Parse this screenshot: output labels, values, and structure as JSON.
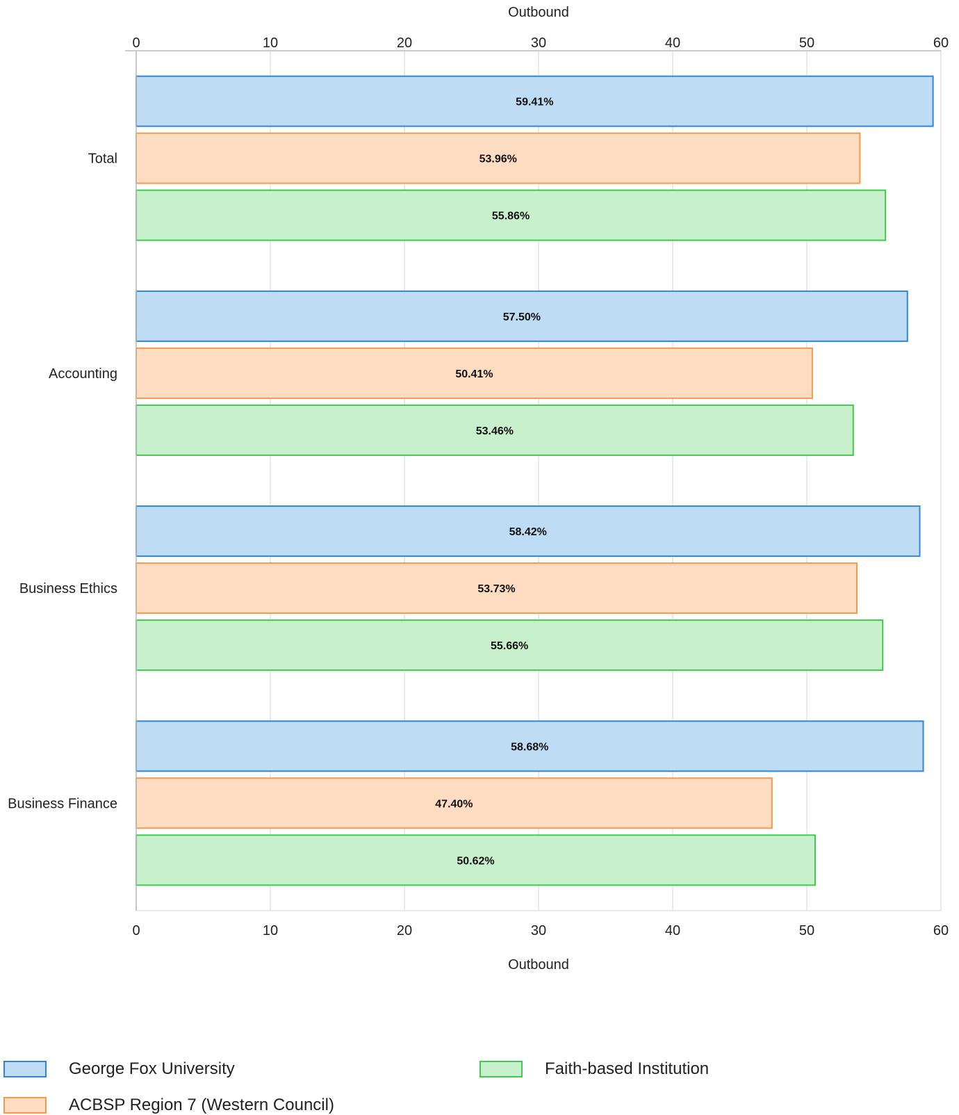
{
  "chart_data": {
    "type": "bar",
    "orientation": "horizontal",
    "categories": [
      "Total",
      "Accounting",
      "Business Ethics",
      "Business Finance"
    ],
    "series": [
      {
        "name": "George Fox University",
        "values": [
          59.41,
          57.5,
          58.42,
          58.68
        ],
        "labels": [
          "59.41%",
          "57.50%",
          "58.42%",
          "58.68%"
        ],
        "fill": "#bfdcf5",
        "stroke": "#2f86d8"
      },
      {
        "name": "ACBSP Region 7 (Western Council)",
        "values": [
          53.96,
          50.41,
          53.73,
          47.4
        ],
        "labels": [
          "53.96%",
          "50.41%",
          "53.73%",
          "47.40%"
        ],
        "fill": "#fddcc2",
        "stroke": "#f39a4a"
      },
      {
        "name": "Faith-based Institution",
        "values": [
          55.86,
          53.46,
          55.66,
          50.62
        ],
        "labels": [
          "55.86%",
          "53.46%",
          "55.66%",
          "50.62%"
        ],
        "fill": "#c8f0cc",
        "stroke": "#3fca4c"
      }
    ],
    "xlabel_top": "Outbound",
    "xlabel_bottom": "Outbound",
    "xlim": [
      0,
      60
    ],
    "xticks": [
      0,
      10,
      20,
      30,
      40,
      50,
      60
    ],
    "grid": true,
    "legend_position": "bottom"
  }
}
